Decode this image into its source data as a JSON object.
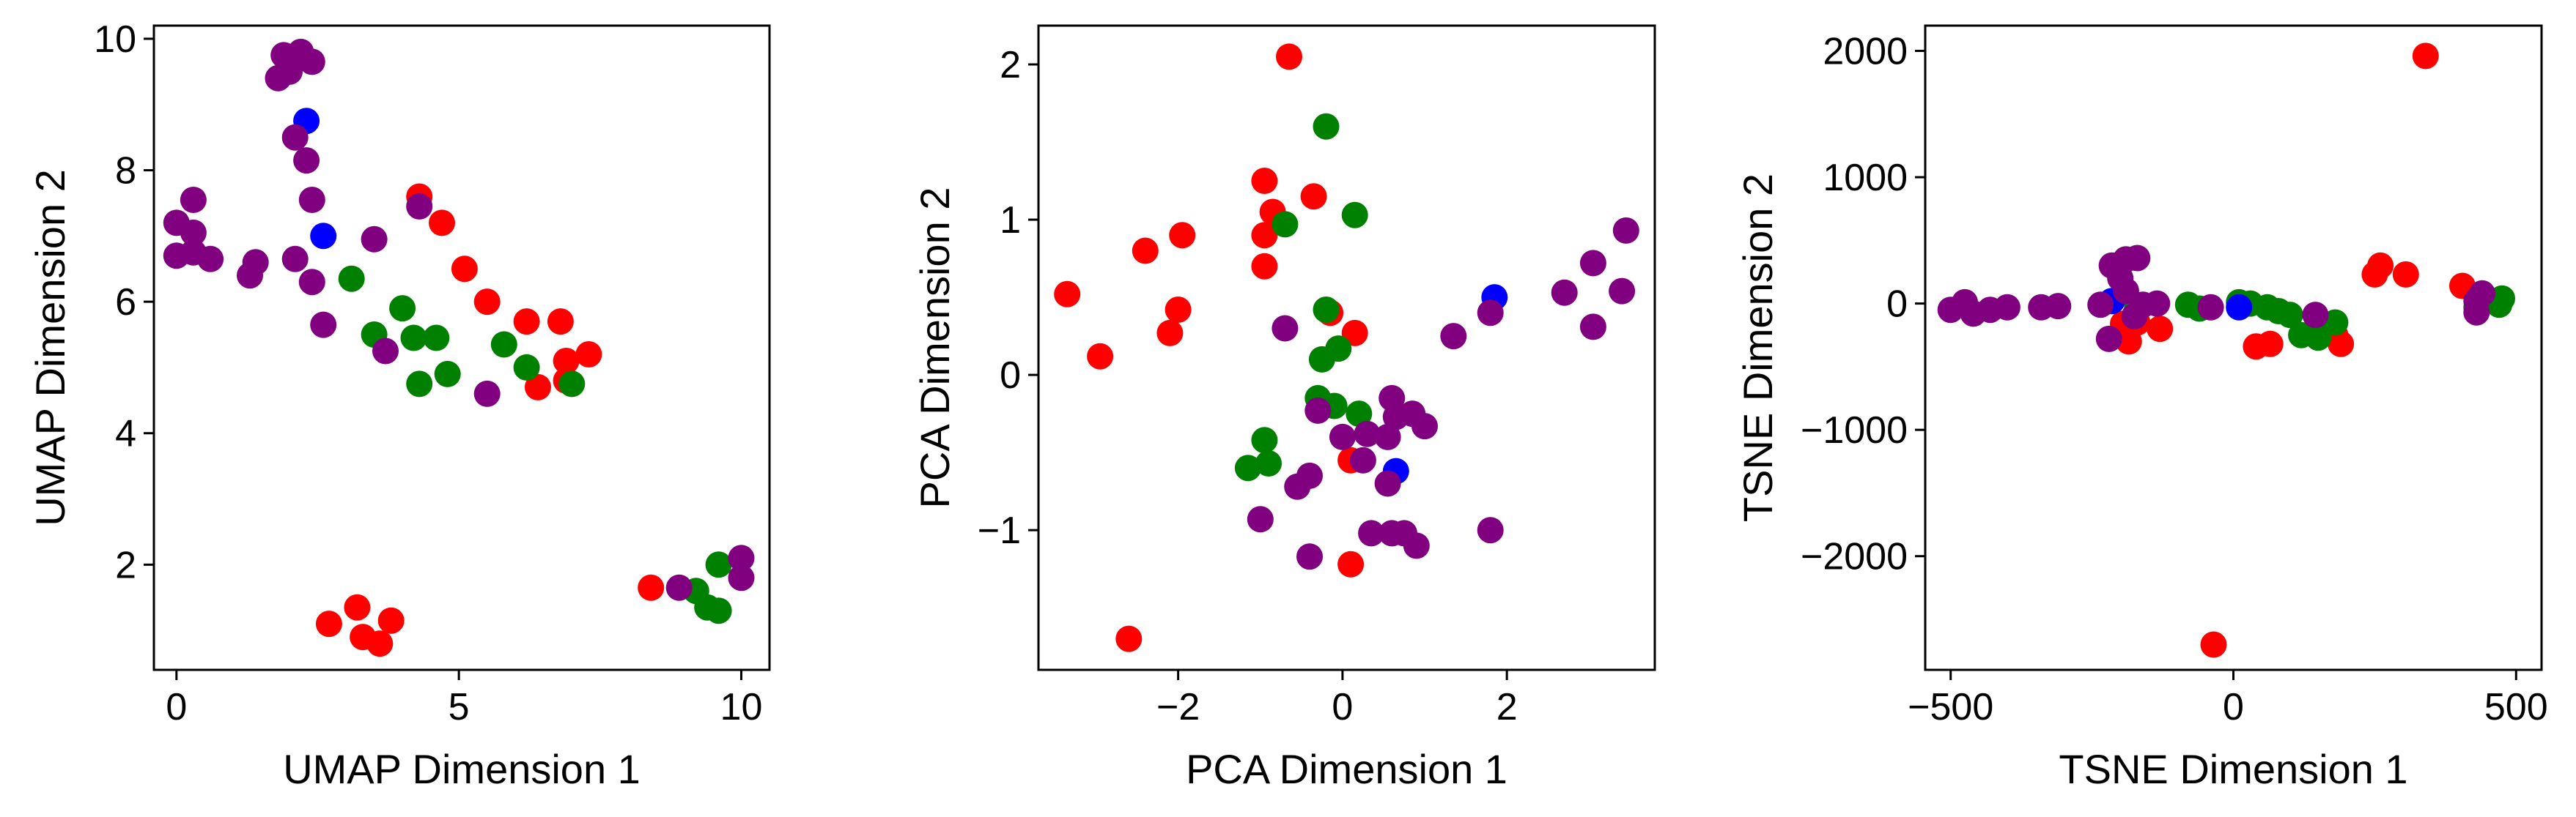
{
  "colors": {
    "red": "#ff0000",
    "green": "#008000",
    "blue": "#0000ff",
    "purple": "#800080"
  },
  "chart_data": [
    {
      "type": "scatter",
      "title": "",
      "xlabel": "UMAP Dimension 1",
      "ylabel": "UMAP Dimension 2",
      "xlim": [
        -0.4,
        10.5
      ],
      "ylim": [
        0.4,
        10.2
      ],
      "xticks": [
        0,
        5,
        10
      ],
      "xtick_labels": [
        "0",
        "5",
        "10"
      ],
      "yticks": [
        2,
        4,
        6,
        8,
        10
      ],
      "ytick_labels": [
        "2",
        "4",
        "6",
        "8",
        "10"
      ],
      "grid": false,
      "series": [
        {
          "color": "#ff0000",
          "points": [
            [
              4.3,
              7.6
            ],
            [
              4.7,
              7.2
            ],
            [
              5.1,
              6.5
            ],
            [
              5.5,
              6.0
            ],
            [
              6.2,
              5.7
            ],
            [
              6.8,
              5.7
            ],
            [
              6.9,
              5.1
            ],
            [
              7.3,
              5.2
            ],
            [
              6.4,
              4.7
            ],
            [
              6.9,
              4.8
            ],
            [
              2.7,
              1.1
            ],
            [
              3.2,
              1.35
            ],
            [
              3.3,
              0.9
            ],
            [
              3.6,
              0.8
            ],
            [
              3.8,
              1.15
            ],
            [
              8.4,
              1.65
            ]
          ]
        },
        {
          "color": "#008000",
          "points": [
            [
              3.1,
              6.35
            ],
            [
              3.5,
              5.5
            ],
            [
              4.0,
              5.9
            ],
            [
              4.2,
              5.45
            ],
            [
              4.6,
              5.45
            ],
            [
              4.3,
              4.75
            ],
            [
              4.8,
              4.9
            ],
            [
              5.8,
              5.35
            ],
            [
              6.2,
              5.0
            ],
            [
              7.0,
              4.75
            ],
            [
              9.2,
              1.6
            ],
            [
              9.4,
              1.35
            ],
            [
              9.6,
              2.0
            ],
            [
              9.6,
              1.3
            ]
          ]
        },
        {
          "color": "#0000ff",
          "points": [
            [
              2.3,
              8.75
            ],
            [
              2.6,
              7.0
            ]
          ]
        },
        {
          "color": "#800080",
          "points": [
            [
              0.0,
              7.2
            ],
            [
              0.3,
              7.55
            ],
            [
              0.3,
              7.05
            ],
            [
              0.0,
              6.7
            ],
            [
              0.3,
              6.75
            ],
            [
              0.6,
              6.65
            ],
            [
              1.3,
              6.4
            ],
            [
              1.4,
              6.6
            ],
            [
              1.8,
              9.4
            ],
            [
              1.9,
              9.75
            ],
            [
              2.0,
              9.5
            ],
            [
              2.2,
              9.8
            ],
            [
              2.4,
              9.65
            ],
            [
              2.1,
              8.5
            ],
            [
              2.3,
              8.15
            ],
            [
              2.4,
              7.55
            ],
            [
              2.1,
              6.65
            ],
            [
              2.4,
              6.3
            ],
            [
              2.6,
              5.65
            ],
            [
              3.5,
              6.95
            ],
            [
              3.7,
              5.25
            ],
            [
              4.3,
              7.45
            ],
            [
              5.5,
              4.6
            ],
            [
              8.9,
              1.65
            ],
            [
              10.0,
              2.1
            ],
            [
              10.0,
              1.8
            ]
          ]
        }
      ]
    },
    {
      "type": "scatter",
      "title": "",
      "xlabel": "PCA Dimension 1",
      "ylabel": "PCA Dimension 2",
      "xlim": [
        -3.7,
        3.8
      ],
      "ylim": [
        -1.9,
        2.25
      ],
      "xticks": [
        -2,
        0,
        2
      ],
      "xtick_labels": [
        "−2",
        "0",
        "2"
      ],
      "yticks": [
        -1,
        0,
        1,
        2
      ],
      "ytick_labels": [
        "−1",
        "0",
        "1",
        "2"
      ],
      "grid": false,
      "series": [
        {
          "color": "#ff0000",
          "points": [
            [
              -0.65,
              2.05
            ],
            [
              -0.95,
              1.25
            ],
            [
              -0.35,
              1.15
            ],
            [
              -0.85,
              1.05
            ],
            [
              -0.95,
              0.9
            ],
            [
              -1.95,
              0.9
            ],
            [
              -2.4,
              0.8
            ],
            [
              -0.95,
              0.7
            ],
            [
              -3.35,
              0.52
            ],
            [
              -2.0,
              0.42
            ],
            [
              -0.15,
              0.4
            ],
            [
              -2.1,
              0.27
            ],
            [
              0.15,
              0.27
            ],
            [
              -2.95,
              0.12
            ],
            [
              0.1,
              -0.55
            ],
            [
              0.1,
              -1.22
            ],
            [
              -2.6,
              -1.7
            ]
          ]
        },
        {
          "color": "#008000",
          "points": [
            [
              -0.2,
              1.6
            ],
            [
              0.15,
              1.03
            ],
            [
              -0.7,
              0.97
            ],
            [
              -0.2,
              0.42
            ],
            [
              -0.25,
              0.1
            ],
            [
              -0.05,
              0.17
            ],
            [
              -0.3,
              -0.15
            ],
            [
              -0.1,
              -0.2
            ],
            [
              0.2,
              -0.25
            ],
            [
              -0.95,
              -0.42
            ],
            [
              -0.9,
              -0.57
            ],
            [
              -1.15,
              -0.6
            ]
          ]
        },
        {
          "color": "#0000ff",
          "points": [
            [
              1.85,
              0.5
            ],
            [
              0.65,
              -0.62
            ]
          ]
        },
        {
          "color": "#800080",
          "points": [
            [
              -0.7,
              0.3
            ],
            [
              0.6,
              -0.15
            ],
            [
              0.65,
              -0.27
            ],
            [
              0.85,
              -0.25
            ],
            [
              1.0,
              -0.33
            ],
            [
              -0.3,
              -0.23
            ],
            [
              0.0,
              -0.4
            ],
            [
              0.3,
              -0.38
            ],
            [
              0.55,
              -0.4
            ],
            [
              0.25,
              -0.55
            ],
            [
              -0.4,
              -0.65
            ],
            [
              -0.55,
              -0.72
            ],
            [
              0.55,
              -0.7
            ],
            [
              -1.0,
              -0.93
            ],
            [
              -0.4,
              -1.17
            ],
            [
              0.35,
              -1.02
            ],
            [
              0.6,
              -1.02
            ],
            [
              0.75,
              -1.02
            ],
            [
              0.9,
              -1.1
            ],
            [
              1.35,
              0.25
            ],
            [
              1.8,
              0.4
            ],
            [
              2.7,
              0.53
            ],
            [
              3.05,
              0.72
            ],
            [
              3.45,
              0.93
            ],
            [
              3.4,
              0.54
            ],
            [
              3.05,
              0.31
            ],
            [
              1.8,
              -1.0
            ]
          ]
        }
      ]
    },
    {
      "type": "scatter",
      "title": "",
      "xlabel": "TSNE Dimension 1",
      "ylabel": "TSNE Dimension 2",
      "xlim": [
        -545,
        545
      ],
      "ylim": [
        -2900,
        2200
      ],
      "xticks": [
        -500,
        0,
        500
      ],
      "xtick_labels": [
        "−500",
        "0",
        "500"
      ],
      "yticks": [
        -2000,
        -1000,
        0,
        1000,
        2000
      ],
      "ytick_labels": [
        "−2000",
        "−1000",
        "0",
        "1000",
        "2000"
      ],
      "grid": false,
      "series": [
        {
          "color": "#ff0000",
          "points": [
            [
              340,
              1960
            ],
            [
              260,
              300
            ],
            [
              305,
              230
            ],
            [
              250,
              230
            ],
            [
              405,
              140
            ],
            [
              -195,
              -160
            ],
            [
              -170,
              -150
            ],
            [
              -130,
              -200
            ],
            [
              -185,
              -300
            ],
            [
              40,
              -340
            ],
            [
              65,
              -320
            ],
            [
              180,
              -250
            ],
            [
              190,
              -320
            ],
            [
              -35,
              -2700
            ]
          ]
        },
        {
          "color": "#008000",
          "points": [
            [
              -170,
              -30
            ],
            [
              -80,
              -10
            ],
            [
              -60,
              -40
            ],
            [
              10,
              10
            ],
            [
              30,
              0
            ],
            [
              60,
              -30
            ],
            [
              80,
              -60
            ],
            [
              100,
              -90
            ],
            [
              120,
              -250
            ],
            [
              150,
              -270
            ],
            [
              180,
              -150
            ],
            [
              430,
              -30
            ],
            [
              470,
              -10
            ],
            [
              475,
              40
            ]
          ]
        },
        {
          "color": "#0000ff",
          "points": [
            [
              -215,
              20
            ],
            [
              10,
              -30
            ]
          ]
        },
        {
          "color": "#800080",
          "points": [
            [
              -500,
              -50
            ],
            [
              -475,
              10
            ],
            [
              -460,
              -80
            ],
            [
              -430,
              -50
            ],
            [
              -400,
              -30
            ],
            [
              -340,
              -30
            ],
            [
              -310,
              -20
            ],
            [
              -235,
              -10
            ],
            [
              -215,
              300
            ],
            [
              -190,
              350
            ],
            [
              -170,
              360
            ],
            [
              -200,
              200
            ],
            [
              -190,
              100
            ],
            [
              -160,
              -10
            ],
            [
              -220,
              -280
            ],
            [
              -175,
              -100
            ],
            [
              -135,
              0
            ],
            [
              -40,
              -30
            ],
            [
              145,
              -90
            ],
            [
              430,
              20
            ],
            [
              440,
              80
            ],
            [
              430,
              -70
            ]
          ]
        }
      ]
    }
  ]
}
